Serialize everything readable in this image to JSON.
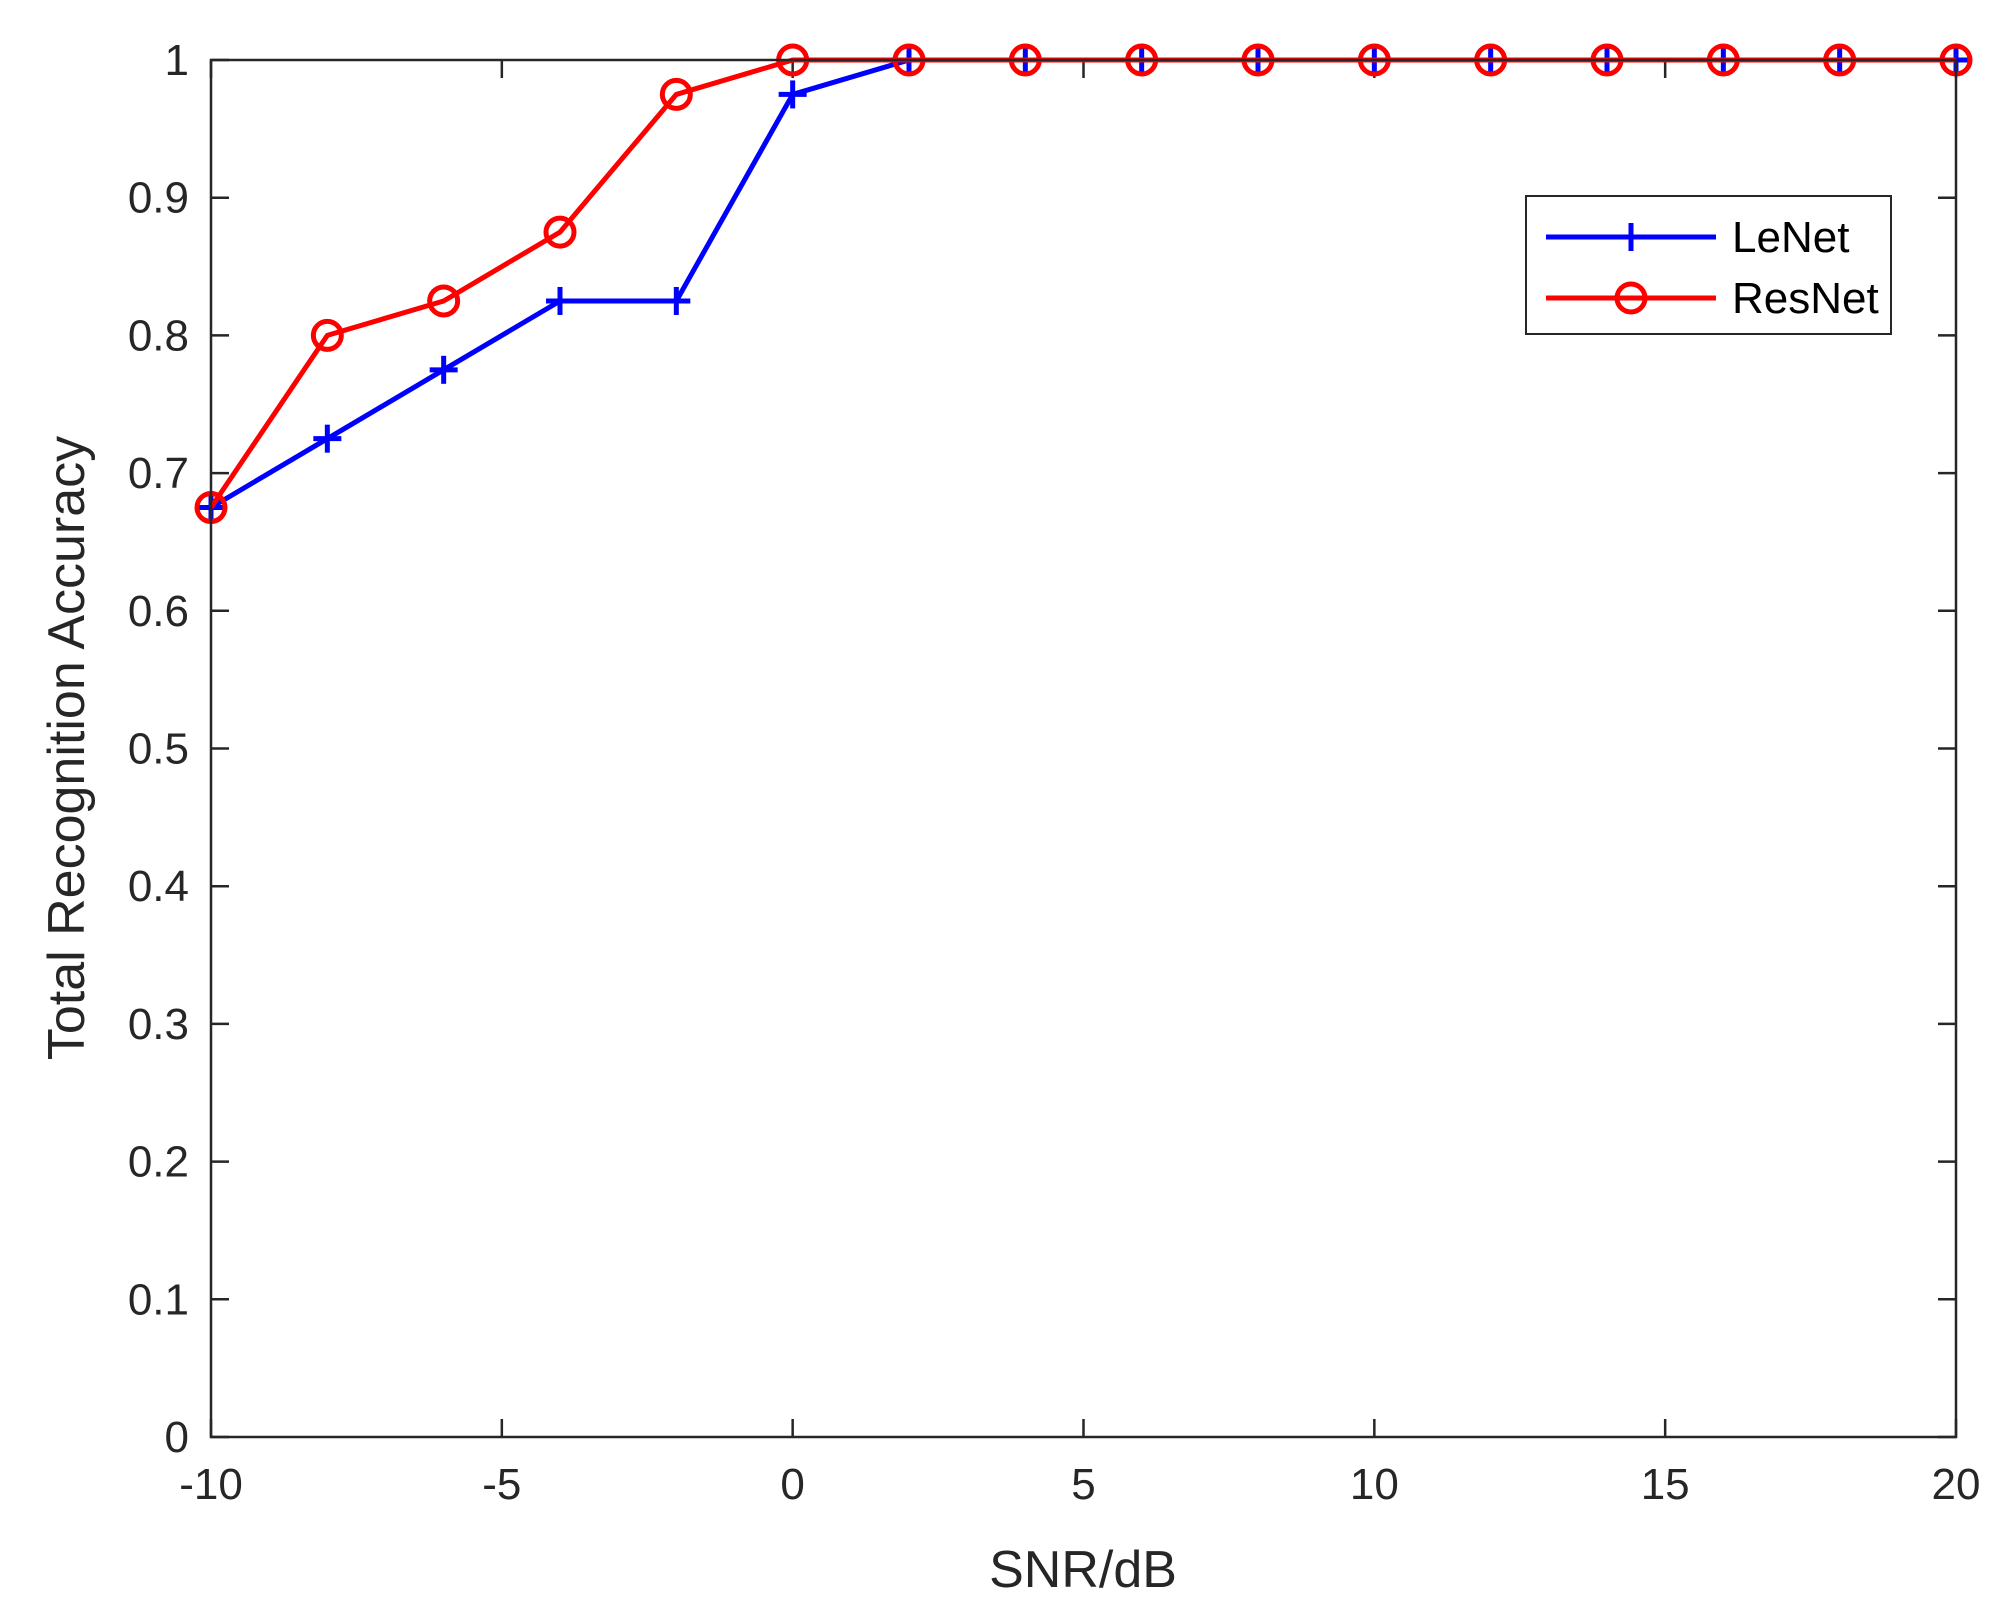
{
  "chart_data": {
    "type": "line",
    "title": "",
    "xlabel": "SNR/dB",
    "ylabel": "Total Recognition Accuracy",
    "xlim": [
      -10,
      20
    ],
    "ylim": [
      0,
      1
    ],
    "xticks": [
      -10,
      -5,
      0,
      5,
      10,
      15,
      20
    ],
    "xtick_labels": [
      "-10",
      "-5",
      "0",
      "5",
      "10",
      "15",
      "20"
    ],
    "yticks": [
      0,
      0.1,
      0.2,
      0.3,
      0.4,
      0.5,
      0.6,
      0.7,
      0.8,
      0.9,
      1
    ],
    "ytick_labels": [
      "0",
      "0.1",
      "0.2",
      "0.3",
      "0.4",
      "0.5",
      "0.6",
      "0.7",
      "0.8",
      "0.9",
      "1"
    ],
    "grid": false,
    "legend_position": "top-right",
    "x": [
      -10,
      -8,
      -6,
      -4,
      -2,
      0,
      2,
      4,
      6,
      8,
      10,
      12,
      14,
      16,
      18,
      20
    ],
    "series": [
      {
        "name": "LeNet",
        "color": "#0000ff",
        "marker": "plus",
        "values": [
          0.675,
          0.725,
          0.775,
          0.825,
          0.825,
          0.975,
          1,
          1,
          1,
          1,
          1,
          1,
          1,
          1,
          1,
          1
        ]
      },
      {
        "name": "ResNet",
        "color": "#ff0000",
        "marker": "circle",
        "values": [
          0.675,
          0.8,
          0.825,
          0.875,
          0.975,
          1,
          1,
          1,
          1,
          1,
          1,
          1,
          1,
          1,
          1,
          1
        ]
      }
    ]
  }
}
